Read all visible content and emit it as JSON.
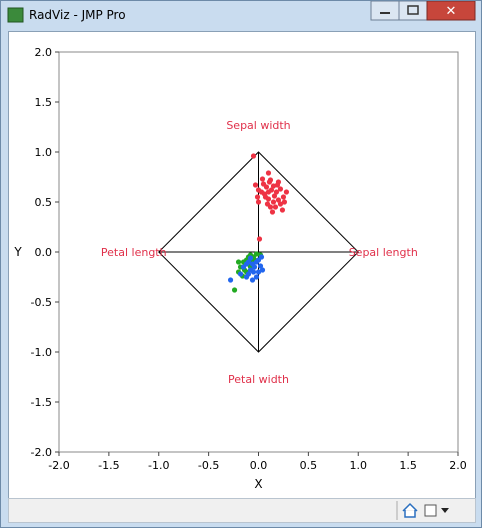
{
  "window_title": "RadViz - JMP Pro",
  "chart_data": {
    "type": "scatter",
    "xlabel": "X",
    "ylabel": "Y",
    "xlim": [
      -2,
      2
    ],
    "ylim": [
      -2,
      2
    ],
    "xticks": [
      {
        "value": -2,
        "label": "-2.0"
      },
      -1.5,
      {
        "value": -1,
        "label": "-1.0"
      },
      -0.5,
      {
        "value": 0,
        "label": "0.0"
      },
      0.5,
      {
        "value": 1,
        "label": "1.0"
      },
      1.5,
      {
        "value": 2,
        "label": "2.0"
      }
    ],
    "yticks": [
      {
        "value": -2,
        "label": "-2.0"
      },
      -1.5,
      {
        "value": -1,
        "label": "-1.0"
      },
      -0.5,
      {
        "value": 0,
        "label": "0.0"
      },
      0.5,
      {
        "value": 1,
        "label": "1.0"
      },
      1.5,
      {
        "value": 2,
        "label": "2.0"
      }
    ],
    "anchors": [
      {
        "label": "Sepal width",
        "x": 0,
        "y": 1
      },
      {
        "label": "Sepal length",
        "x": 1,
        "y": 0
      },
      {
        "label": "Petal width",
        "x": 0,
        "y": -1
      },
      {
        "label": "Petal length",
        "x": -1,
        "y": 0
      }
    ],
    "anchor_color": "#e0304a",
    "series": [
      {
        "color": "#ee3344",
        "x": [
          -0.05,
          0.01,
          0.1,
          0.12,
          0.05,
          0.08,
          0.15,
          0.2,
          0.0,
          0.03,
          0.06,
          0.1,
          0.13,
          0.18,
          0.22,
          0.28,
          0.25,
          0.2,
          0.15,
          0.1,
          0.07,
          0.12,
          0.17,
          0.22,
          0.24,
          0.14,
          0.0,
          -0.03,
          0.04,
          0.16,
          0.19,
          0.09,
          0.26,
          0.11,
          -0.01
        ],
        "y": [
          0.96,
          0.13,
          0.79,
          0.72,
          0.68,
          0.65,
          0.66,
          0.7,
          0.62,
          0.6,
          0.58,
          0.6,
          0.62,
          0.6,
          0.63,
          0.6,
          0.55,
          0.52,
          0.5,
          0.53,
          0.55,
          0.45,
          0.45,
          0.48,
          0.42,
          0.4,
          0.5,
          0.67,
          0.73,
          0.56,
          0.67,
          0.48,
          0.5,
          0.7,
          0.55
        ]
      },
      {
        "color": "#22aa22",
        "x": [
          -0.24,
          -0.2,
          -0.18,
          -0.15,
          -0.12,
          -0.1,
          -0.08,
          -0.05,
          -0.14,
          -0.1,
          -0.06,
          -0.02,
          -0.16,
          -0.12,
          -0.04,
          0.02,
          -0.2,
          -0.08
        ],
        "y": [
          -0.38,
          -0.2,
          -0.15,
          -0.1,
          -0.08,
          -0.05,
          -0.03,
          -0.05,
          -0.18,
          -0.12,
          -0.1,
          -0.02,
          -0.24,
          -0.2,
          -0.08,
          -0.03,
          -0.1,
          -0.15
        ]
      },
      {
        "color": "#2266ee",
        "x": [
          -0.28,
          -0.18,
          -0.15,
          -0.12,
          -0.1,
          -0.08,
          -0.06,
          -0.04,
          -0.02,
          0.0,
          0.02,
          -0.05,
          -0.1,
          -0.02,
          -0.08,
          0.03,
          -0.12,
          0.0,
          -0.06,
          0.04
        ],
        "y": [
          -0.28,
          -0.22,
          -0.15,
          -0.12,
          -0.1,
          -0.18,
          -0.12,
          -0.15,
          -0.1,
          -0.08,
          -0.14,
          -0.2,
          -0.22,
          -0.25,
          -0.06,
          -0.05,
          -0.25,
          -0.2,
          -0.28,
          -0.18
        ]
      }
    ]
  }
}
